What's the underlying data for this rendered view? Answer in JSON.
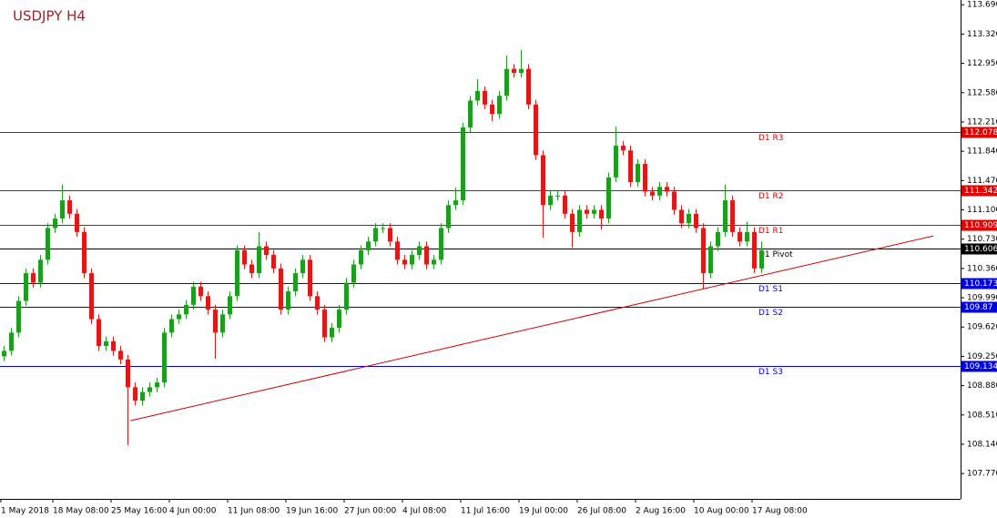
{
  "chart_data": {
    "type": "candlestick",
    "title": "USDJPY H4",
    "ylim": [
      107.45,
      113.75
    ],
    "yticks": [
      {
        "value": 113.69,
        "label": "113.690"
      },
      {
        "value": 113.32,
        "label": "113.320"
      },
      {
        "value": 112.95,
        "label": "112.950"
      },
      {
        "value": 112.58,
        "label": "112.580"
      },
      {
        "value": 112.21,
        "label": "112.210"
      },
      {
        "value": 111.84,
        "label": "111.840"
      },
      {
        "value": 111.47,
        "label": "111.470"
      },
      {
        "value": 111.1,
        "label": "111.100"
      },
      {
        "value": 110.73,
        "label": "110.730"
      },
      {
        "value": 110.36,
        "label": "110.360"
      },
      {
        "value": 109.99,
        "label": "109.990"
      },
      {
        "value": 109.62,
        "label": "109.620"
      },
      {
        "value": 109.25,
        "label": "109.250"
      },
      {
        "value": 108.88,
        "label": "108.880"
      },
      {
        "value": 108.51,
        "label": "108.510"
      },
      {
        "value": 108.14,
        "label": "108.140"
      },
      {
        "value": 107.77,
        "label": "107.770"
      }
    ],
    "xtick_labels": [
      "1 May 2018",
      "18 May 08:00",
      "25 May 16:00",
      "4 Jun 00:00",
      "11 Jun 08:00",
      "19 Jun 16:00",
      "27 Jun 00:00",
      "4 Jul 08:00",
      "11 Jul 16:00",
      "19 Jul 00:00",
      "26 Jul 08:00",
      "2 Aug 16:00",
      "10 Aug 00:00",
      "17 Aug 08:00"
    ],
    "up_color": "#1e9e1e",
    "down_color": "#e01818",
    "open": [
      109.25,
      109.32,
      109.55,
      109.95,
      110.3,
      110.18,
      110.47,
      110.87,
      110.99,
      111.22,
      111.05,
      110.82,
      110.3,
      109.72,
      109.38,
      109.44,
      109.32,
      109.21,
      108.86,
      108.69,
      108.8,
      108.86,
      108.92,
      109.55,
      109.72,
      109.78,
      109.9,
      110.13,
      110.01,
      109.84,
      109.55,
      109.78,
      110.01,
      110.59,
      110.41,
      110.3,
      110.64,
      110.53,
      110.36,
      109.84,
      110.07,
      110.3,
      110.47,
      110.01,
      109.84,
      109.49,
      109.61,
      109.84,
      110.18,
      110.41,
      110.59,
      110.7,
      110.87,
      110.87,
      110.7,
      110.47,
      110.41,
      110.53,
      110.64,
      110.41,
      110.47,
      110.87,
      111.16,
      111.22,
      112.14,
      112.48,
      112.6,
      112.43,
      112.31,
      112.54,
      112.88,
      112.83,
      112.88,
      112.43,
      111.79,
      111.16,
      111.28,
      111.28,
      111.05,
      110.82,
      111.1,
      111.05,
      111.1,
      110.99,
      111.51,
      111.91,
      111.85,
      111.45,
      111.68,
      111.33,
      111.28,
      111.39,
      111.33,
      111.1,
      110.93,
      111.05,
      110.87,
      110.3,
      110.64,
      110.82,
      111.22,
      110.82,
      110.7,
      110.82,
      110.36
    ],
    "high": [
      109.38,
      109.61,
      110.01,
      110.36,
      110.36,
      110.53,
      110.93,
      111.05,
      111.42,
      111.28,
      111.11,
      110.88,
      110.36,
      109.78,
      109.5,
      109.5,
      109.38,
      109.27,
      108.92,
      108.86,
      108.92,
      108.98,
      109.61,
      109.78,
      109.84,
      109.96,
      110.19,
      110.19,
      110.07,
      109.9,
      109.84,
      110.07,
      110.65,
      110.65,
      110.47,
      110.82,
      110.7,
      110.59,
      110.42,
      110.13,
      110.36,
      110.53,
      110.53,
      110.07,
      109.9,
      109.67,
      109.9,
      110.24,
      110.47,
      110.65,
      110.76,
      110.93,
      110.93,
      110.93,
      110.76,
      110.53,
      110.59,
      110.7,
      110.7,
      110.53,
      110.93,
      111.22,
      111.38,
      112.2,
      112.54,
      112.75,
      112.66,
      112.49,
      112.6,
      113.05,
      112.94,
      113.12,
      112.94,
      112.49,
      111.85,
      111.34,
      111.34,
      111.34,
      111.11,
      111.16,
      111.16,
      111.16,
      111.16,
      111.57,
      112.15,
      111.97,
      111.91,
      111.74,
      111.74,
      111.39,
      111.45,
      111.45,
      111.39,
      111.16,
      111.11,
      111.11,
      110.93,
      110.7,
      110.88,
      111.42,
      111.28,
      110.88,
      110.95,
      110.88,
      110.7
    ],
    "low": [
      109.19,
      109.26,
      109.49,
      109.89,
      110.12,
      110.12,
      110.41,
      110.81,
      110.93,
      110.99,
      110.76,
      110.24,
      109.66,
      109.32,
      109.32,
      109.26,
      109.15,
      108.13,
      108.63,
      108.63,
      108.74,
      108.8,
      108.86,
      109.49,
      109.66,
      109.72,
      109.84,
      109.95,
      109.78,
      109.22,
      109.49,
      109.72,
      109.95,
      110.35,
      110.24,
      110.24,
      110.47,
      110.3,
      109.78,
      109.78,
      110.01,
      110.24,
      109.95,
      109.78,
      109.43,
      109.43,
      109.55,
      109.78,
      110.12,
      110.35,
      110.53,
      110.64,
      110.81,
      110.64,
      110.41,
      110.35,
      110.35,
      110.47,
      110.35,
      110.35,
      110.41,
      110.81,
      111.1,
      111.16,
      112.08,
      112.42,
      112.37,
      112.22,
      112.25,
      112.48,
      112.77,
      112.77,
      112.37,
      111.73,
      110.75,
      111.1,
      111.22,
      110.99,
      110.62,
      110.76,
      110.99,
      110.99,
      110.85,
      110.93,
      111.45,
      111.79,
      111.39,
      111.39,
      111.27,
      111.22,
      111.22,
      111.27,
      111.04,
      110.87,
      110.87,
      110.81,
      110.1,
      110.24,
      110.58,
      110.76,
      110.76,
      110.64,
      110.64,
      110.3,
      110.3
    ],
    "close": [
      109.32,
      109.55,
      109.95,
      110.3,
      110.18,
      110.47,
      110.87,
      110.99,
      111.22,
      111.05,
      110.82,
      110.3,
      109.72,
      109.38,
      109.44,
      109.32,
      109.21,
      108.86,
      108.69,
      108.8,
      108.86,
      108.92,
      109.55,
      109.72,
      109.78,
      109.9,
      110.13,
      110.01,
      109.84,
      109.55,
      109.78,
      110.01,
      110.59,
      110.41,
      110.3,
      110.64,
      110.53,
      110.36,
      109.84,
      110.07,
      110.3,
      110.47,
      110.01,
      109.84,
      109.49,
      109.61,
      109.84,
      110.18,
      110.41,
      110.59,
      110.7,
      110.87,
      110.87,
      110.7,
      110.47,
      110.41,
      110.53,
      110.64,
      110.41,
      110.47,
      110.87,
      111.16,
      111.22,
      112.14,
      112.48,
      112.6,
      112.43,
      112.31,
      112.54,
      112.88,
      112.83,
      112.88,
      112.43,
      111.79,
      111.16,
      111.28,
      111.28,
      111.05,
      110.82,
      111.1,
      111.05,
      111.1,
      110.99,
      111.51,
      111.91,
      111.85,
      111.45,
      111.68,
      111.33,
      111.28,
      111.39,
      111.33,
      111.1,
      110.93,
      111.05,
      110.87,
      110.3,
      110.64,
      110.82,
      111.22,
      110.82,
      110.7,
      110.82,
      110.36,
      110.59
    ],
    "levels": [
      {
        "name": "D1 R3",
        "value": 112.078,
        "color": "#e00000"
      },
      {
        "name": "D1 R2",
        "value": 111.342,
        "color": "#e00000"
      },
      {
        "name": "D1 R1",
        "value": 110.909,
        "color": "#e00000"
      },
      {
        "name": "D1 Pivot",
        "value": 110.606,
        "color": "#000000"
      },
      {
        "name": "D1 S1",
        "value": 110.173,
        "color": "#0000e0"
      },
      {
        "name": "D1 S2",
        "value": 109.87,
        "color": "#0000e0"
      },
      {
        "name": "D1 S3",
        "value": 109.134,
        "color": "#0000e0"
      }
    ],
    "trendline": {
      "x": [
        17.4,
        127.6
      ],
      "y": [
        108.437,
        110.77
      ],
      "color": "#d00000"
    }
  }
}
